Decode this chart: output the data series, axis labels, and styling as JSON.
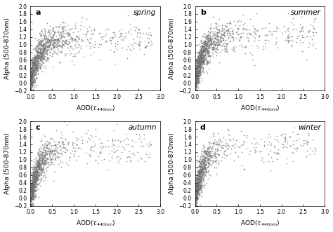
{
  "seasons": [
    "spring",
    "summer",
    "autumn",
    "winter"
  ],
  "labels": [
    "a",
    "b",
    "c",
    "d"
  ],
  "xlim": [
    0.0,
    3.0
  ],
  "ylim": [
    -0.2,
    2.0
  ],
  "xticks": [
    0.0,
    0.5,
    1.0,
    1.5,
    2.0,
    2.5,
    3.0
  ],
  "yticks": [
    -0.2,
    0.0,
    0.2,
    0.4,
    0.6,
    0.8,
    1.0,
    1.2,
    1.4,
    1.6,
    1.8,
    2.0
  ],
  "xlabel": "AOD(τ_{440nm})",
  "ylabel": "Alpha (500-870nm)",
  "scatter_color": "#707070",
  "marker_size": 1.5,
  "n_points": [
    1200,
    1300,
    1100,
    1000
  ],
  "seeds": [
    42,
    123,
    77,
    9
  ],
  "background_color": "#ffffff",
  "tick_fontsize": 5.5,
  "label_fontsize": 6.5,
  "season_fontsize": 7.5,
  "panel_label_fontsize": 8
}
